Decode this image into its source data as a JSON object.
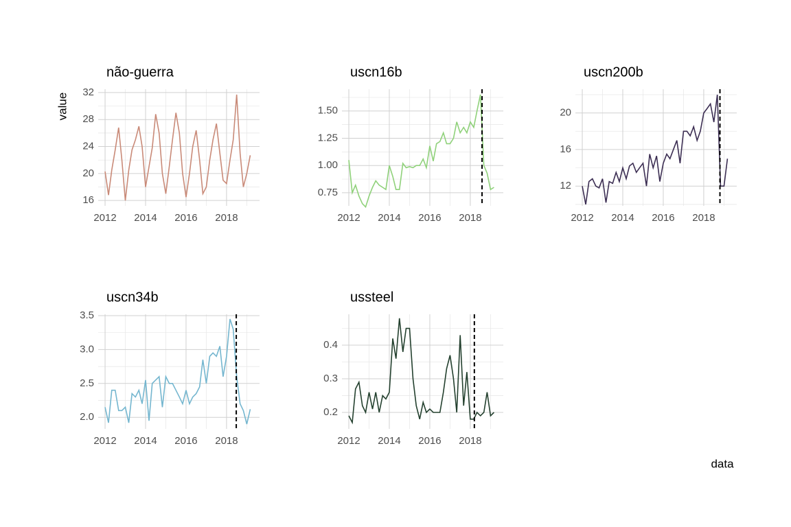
{
  "ylabel": "value",
  "xlabel": "data",
  "chart_data": [
    {
      "type": "line",
      "title": "não-guerra",
      "color": "#c98a78",
      "grid": true,
      "minor_grid": true,
      "xlim": [
        2011.66,
        2019.63
      ],
      "xticks": [
        2012,
        2014,
        2016,
        2018
      ],
      "ylim": [
        15.2,
        32.5
      ],
      "yticks": [
        16,
        20,
        24,
        28,
        32
      ],
      "x": [
        2012,
        2012.17,
        2012.33,
        2012.5,
        2012.67,
        2012.83,
        2013,
        2013.17,
        2013.33,
        2013.5,
        2013.67,
        2013.83,
        2014,
        2014.17,
        2014.33,
        2014.5,
        2014.67,
        2014.83,
        2015,
        2015.17,
        2015.33,
        2015.5,
        2015.67,
        2015.83,
        2016,
        2016.17,
        2016.33,
        2016.5,
        2016.67,
        2016.83,
        2017,
        2017.17,
        2017.33,
        2017.5,
        2017.67,
        2017.83,
        2018,
        2018.17,
        2018.33,
        2018.5,
        2018.67,
        2018.83,
        2019,
        2019.17
      ],
      "values": [
        20.3,
        16.8,
        20.5,
        23.5,
        26.8,
        22,
        16,
        20.5,
        23.5,
        25,
        27,
        24,
        18,
        21,
        23.8,
        28.8,
        26,
        20,
        17,
        21,
        25,
        29,
        26,
        20,
        16.5,
        20,
        24,
        26.4,
        22,
        17,
        18,
        22,
        25,
        27.4,
        23,
        19,
        18.5,
        22,
        25,
        31.7,
        23,
        18,
        20,
        22.7
      ]
    },
    {
      "type": "line",
      "title": "uscn16b",
      "color": "#8fd17a",
      "grid": true,
      "minor_grid": true,
      "vline": 2018.58,
      "xlim": [
        2011.66,
        2019.63
      ],
      "xticks": [
        2012,
        2014,
        2016,
        2018
      ],
      "ylim": [
        0.63,
        1.7
      ],
      "yticks": [
        0.75,
        {
          "value": 1.0,
          "label": "1.00"
        },
        1.25,
        {
          "value": 1.5,
          "label": "1.50"
        }
      ],
      "x": [
        2012,
        2012.17,
        2012.33,
        2012.5,
        2012.67,
        2012.83,
        2013,
        2013.17,
        2013.33,
        2013.5,
        2013.67,
        2013.83,
        2014,
        2014.17,
        2014.33,
        2014.5,
        2014.67,
        2014.83,
        2015,
        2015.17,
        2015.33,
        2015.5,
        2015.67,
        2015.83,
        2016,
        2016.17,
        2016.33,
        2016.5,
        2016.67,
        2016.83,
        2017,
        2017.17,
        2017.33,
        2017.5,
        2017.67,
        2017.83,
        2018,
        2018.17,
        2018.33,
        2018.5,
        2018.67,
        2018.83,
        2019,
        2019.17
      ],
      "values": [
        1.05,
        0.75,
        0.82,
        0.72,
        0.65,
        0.62,
        0.72,
        0.8,
        0.86,
        0.82,
        0.8,
        0.78,
        1.0,
        0.9,
        0.78,
        0.78,
        1.02,
        0.98,
        0.99,
        0.98,
        1.0,
        1.0,
        1.06,
        0.98,
        1.18,
        1.04,
        1.2,
        1.22,
        1.3,
        1.2,
        1.2,
        1.25,
        1.4,
        1.3,
        1.35,
        1.3,
        1.4,
        1.35,
        1.5,
        1.65,
        1.0,
        0.93,
        0.78,
        0.8
      ]
    },
    {
      "type": "line",
      "title": "uscn200b",
      "color": "#3b2d52",
      "grid": true,
      "minor_grid": true,
      "vline": 2018.8,
      "xlim": [
        2011.66,
        2019.63
      ],
      "xticks": [
        2012,
        2014,
        2016,
        2018
      ],
      "ylim": [
        9.84,
        22.6
      ],
      "yticks": [
        12,
        16,
        20
      ],
      "x": [
        2012,
        2012.17,
        2012.33,
        2012.5,
        2012.67,
        2012.83,
        2013,
        2013.17,
        2013.33,
        2013.5,
        2013.67,
        2013.83,
        2014,
        2014.17,
        2014.33,
        2014.5,
        2014.67,
        2014.83,
        2015,
        2015.17,
        2015.33,
        2015.5,
        2015.67,
        2015.83,
        2016,
        2016.17,
        2016.33,
        2016.5,
        2016.67,
        2016.83,
        2017,
        2017.17,
        2017.33,
        2017.5,
        2017.67,
        2017.83,
        2018,
        2018.17,
        2018.33,
        2018.5,
        2018.67,
        2018.83,
        2019,
        2019.17
      ],
      "values": [
        12,
        10,
        12.5,
        12.8,
        12,
        11.8,
        12.8,
        10.2,
        12.5,
        12.3,
        13.5,
        12.5,
        14,
        12.8,
        14.2,
        14.5,
        13.5,
        14,
        14.5,
        12,
        15.5,
        14,
        15.3,
        12.5,
        14.5,
        15.5,
        15,
        16,
        17,
        14.5,
        18,
        18,
        17.5,
        18.5,
        17,
        18,
        20,
        20.5,
        21,
        19,
        22,
        12,
        12,
        15
      ]
    },
    {
      "type": "line",
      "title": "uscn34b",
      "color": "#74b6cf",
      "grid": true,
      "minor_grid": true,
      "vline": 2018.48,
      "xlim": [
        2011.66,
        2019.63
      ],
      "xticks": [
        2012,
        2014,
        2016,
        2018
      ],
      "ylim": [
        1.83,
        3.52
      ],
      "yticks": [
        {
          "value": 2.0,
          "label": "2.0"
        },
        2.5,
        {
          "value": 3.0,
          "label": "3.0"
        },
        3.5
      ],
      "x": [
        2012,
        2012.17,
        2012.33,
        2012.5,
        2012.67,
        2012.83,
        2013,
        2013.17,
        2013.33,
        2013.5,
        2013.67,
        2013.83,
        2014,
        2014.17,
        2014.33,
        2014.5,
        2014.67,
        2014.83,
        2015,
        2015.17,
        2015.33,
        2015.5,
        2015.67,
        2015.83,
        2016,
        2016.17,
        2016.33,
        2016.5,
        2016.67,
        2016.83,
        2017,
        2017.17,
        2017.33,
        2017.5,
        2017.67,
        2017.83,
        2018,
        2018.17,
        2018.33,
        2018.5,
        2018.67,
        2018.83,
        2019,
        2019.17
      ],
      "values": [
        2.15,
        1.92,
        2.4,
        2.4,
        2.1,
        2.1,
        2.15,
        1.92,
        2.35,
        2.3,
        2.4,
        2.2,
        2.55,
        1.95,
        2.5,
        2.55,
        2.6,
        2.15,
        2.6,
        2.5,
        2.5,
        2.4,
        2.3,
        2.2,
        2.4,
        2.2,
        2.3,
        2.35,
        2.45,
        2.85,
        2.5,
        2.9,
        2.95,
        2.9,
        3.05,
        2.6,
        2.9,
        3.45,
        3.3,
        2.6,
        2.2,
        2.1,
        1.9,
        2.12
      ]
    },
    {
      "type": "line",
      "title": "ussteel",
      "color": "#23402e",
      "grid": true,
      "minor_grid": true,
      "vline": 2018.2,
      "xlim": [
        2011.66,
        2019.63
      ],
      "xticks": [
        2012,
        2014,
        2016,
        2018
      ],
      "ylim": [
        0.151,
        0.492
      ],
      "yticks": [
        0.2,
        0.3,
        0.4
      ],
      "x": [
        2012,
        2012.17,
        2012.33,
        2012.5,
        2012.67,
        2012.83,
        2013,
        2013.17,
        2013.33,
        2013.5,
        2013.67,
        2013.83,
        2014,
        2014.17,
        2014.33,
        2014.5,
        2014.67,
        2014.83,
        2015,
        2015.17,
        2015.33,
        2015.5,
        2015.67,
        2015.83,
        2016,
        2016.17,
        2016.33,
        2016.5,
        2016.67,
        2016.83,
        2017,
        2017.17,
        2017.33,
        2017.5,
        2017.67,
        2017.83,
        2018,
        2018.17,
        2018.33,
        2018.5,
        2018.67,
        2018.83,
        2019,
        2019.17
      ],
      "values": [
        0.19,
        0.17,
        0.27,
        0.29,
        0.22,
        0.2,
        0.26,
        0.21,
        0.26,
        0.2,
        0.25,
        0.24,
        0.26,
        0.42,
        0.36,
        0.48,
        0.38,
        0.45,
        0.45,
        0.3,
        0.22,
        0.18,
        0.23,
        0.2,
        0.21,
        0.2,
        0.2,
        0.2,
        0.26,
        0.33,
        0.37,
        0.3,
        0.2,
        0.43,
        0.22,
        0.32,
        0.18,
        0.18,
        0.2,
        0.19,
        0.2,
        0.26,
        0.19,
        0.2
      ]
    }
  ]
}
